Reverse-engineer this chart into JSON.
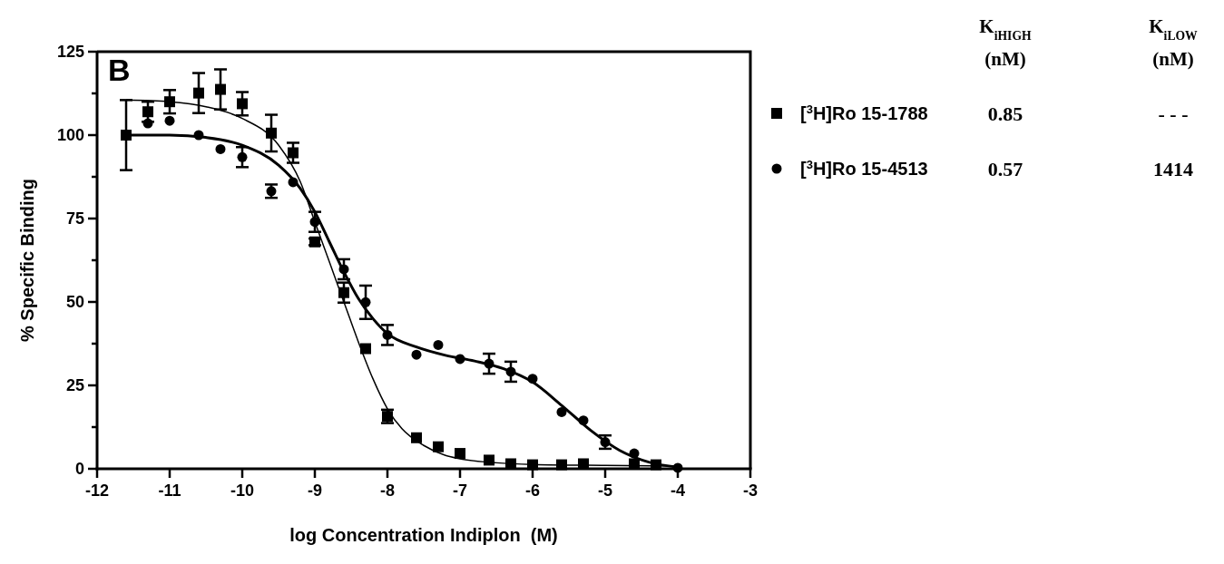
{
  "chart_data": {
    "type": "scatter",
    "xlabel": "log Concentration Indiplon  (M)",
    "ylabel": "% Specific Binding",
    "xlim": [
      -12,
      -3
    ],
    "xticks": [
      -12,
      -11,
      -10,
      -9,
      -8,
      -7,
      -6,
      -5,
      -4,
      -3
    ],
    "ylim": [
      0,
      125
    ],
    "yticks": [
      0,
      {
        "value": 12.5,
        "label": null
      },
      25,
      {
        "value": 37.5,
        "label": null
      },
      50,
      {
        "value": 62.5,
        "label": null
      },
      75,
      {
        "value": 87.5,
        "label": null
      },
      100,
      {
        "value": 112.5,
        "label": null
      },
      125
    ],
    "grid": false,
    "legend": "right",
    "annotations": [
      "B",
      "K$_{iHIGH}$ (nM)",
      "K$_{iLOW}$ (nM)",
      "0.85",
      "- - -",
      "0.57",
      "1414"
    ],
    "series": [
      {
        "type": "line",
        "color": "#000000",
        "marker": "none",
        "line_style": "solid",
        "x": [
          -11.6,
          -11,
          -10.5,
          -10,
          -9.5,
          -9.2,
          -9,
          -8.8,
          -8.6,
          -8.4,
          -8.2,
          -8,
          -7.8,
          -7.5,
          -7.2,
          -7,
          -6.5,
          -6,
          -5,
          -4
        ],
        "values": [
          110.5,
          110,
          108.5,
          105,
          97,
          86,
          74,
          62,
          50,
          38,
          27,
          18,
          12,
          7,
          4,
          3,
          1.8,
          1.3,
          1,
          0.8
        ]
      },
      {
        "type": "line",
        "color": "#000000",
        "marker": "none",
        "line_style": "solid",
        "x": [
          -11.6,
          -11,
          -10.5,
          -10,
          -9.5,
          -9.2,
          -9,
          -8.8,
          -8.6,
          -8.4,
          -8.2,
          -8,
          -7.6,
          -7.2,
          -6.8,
          -6.4,
          -6,
          -5.6,
          -5.2,
          -4.8,
          -4.4,
          -4
        ],
        "values": [
          100,
          100,
          99.3,
          97,
          91,
          84,
          77,
          68,
          59,
          51,
          45,
          40.5,
          36.5,
          34,
          32.3,
          30,
          26,
          19,
          11.5,
          5.5,
          2,
          0.5
        ]
      },
      {
        "name": "[$^{3}$H]Ro 15-1788",
        "color": "#000000",
        "marker": "square",
        "x": [
          -11.6,
          -11.3,
          -11,
          -10.6,
          -10.3,
          -10,
          -9.6,
          -9.3,
          -9,
          -8.6,
          -8.3,
          -8,
          -7.6,
          -7.3,
          -7,
          -6.6,
          -6.3,
          -6,
          -5.6,
          -5.3,
          -4.6,
          -4.3
        ],
        "values": [
          100,
          107,
          110,
          112.6,
          113.7,
          109.4,
          100.6,
          94.7,
          68,
          52.8,
          36,
          15.7,
          9.3,
          6.6,
          4.6,
          2.6,
          1.5,
          1.2,
          1.2,
          1.5,
          1.5,
          1.2
        ],
        "errors": [
          10.5,
          3,
          3.5,
          6,
          6,
          3.5,
          5.5,
          3,
          1,
          3,
          null,
          2,
          null,
          null,
          null,
          null,
          null,
          null,
          null,
          null,
          null,
          null
        ]
      },
      {
        "name": "[$^{3}$H]Ro 15-4513",
        "color": "#000000",
        "marker": "circle",
        "x": [
          -11.3,
          -11,
          -10.6,
          -10.3,
          -10,
          -9.6,
          -9.3,
          -9,
          -8.6,
          -8.3,
          -8,
          -7.6,
          -7.3,
          -7,
          -6.6,
          -6.3,
          -6,
          -5.6,
          -5.3,
          -5,
          -4.6,
          -4
        ],
        "values": [
          103.5,
          104.3,
          100,
          95.8,
          93.4,
          83.2,
          85.9,
          74,
          59.8,
          49.9,
          40.1,
          34.2,
          37.1,
          32.9,
          31.5,
          29.1,
          27,
          17,
          14.5,
          8,
          4.6,
          0.3
        ],
        "errors": [
          null,
          null,
          null,
          null,
          3,
          2,
          null,
          3,
          3,
          5,
          3,
          null,
          null,
          null,
          3,
          3,
          null,
          null,
          null,
          2,
          null,
          null
        ]
      }
    ]
  }
}
